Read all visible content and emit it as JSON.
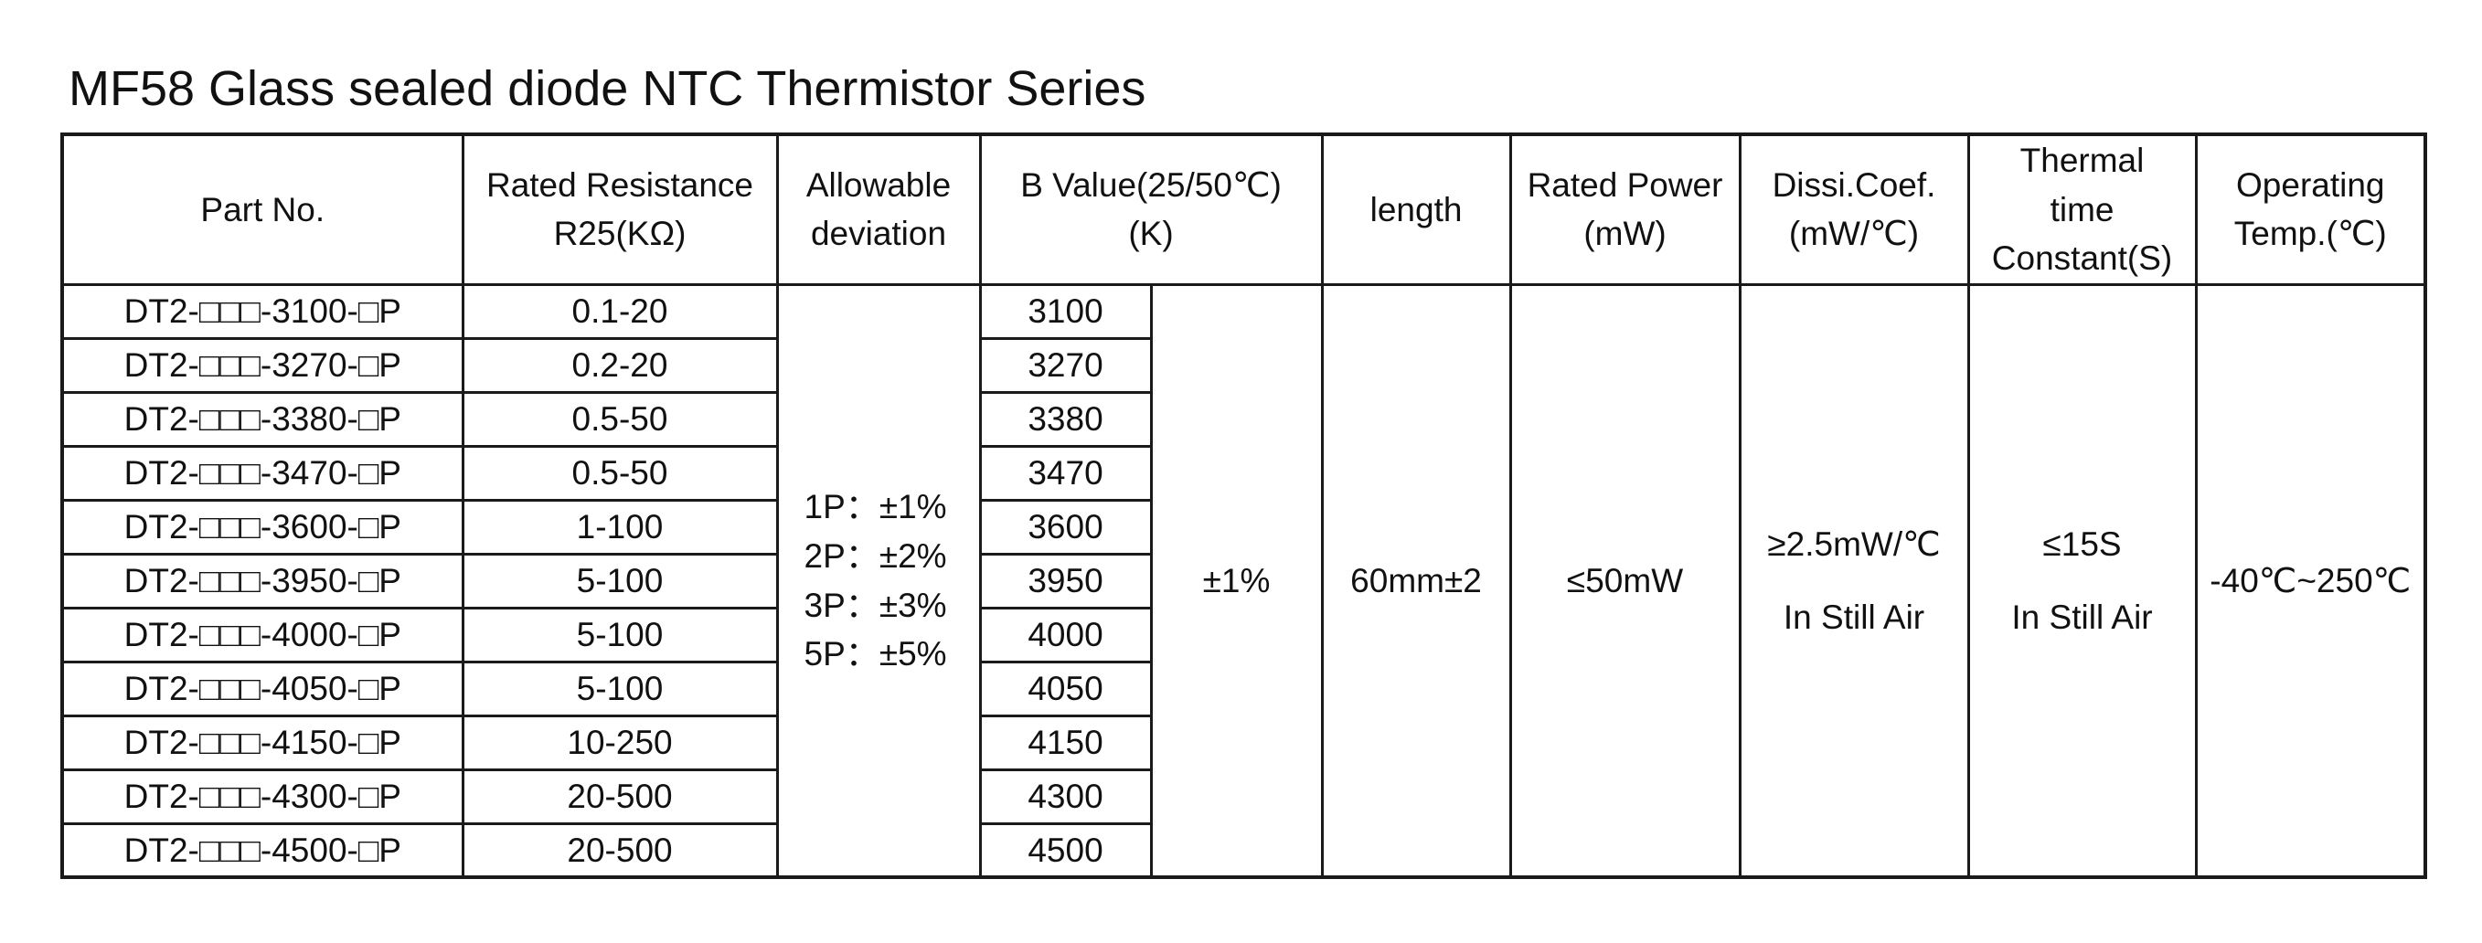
{
  "title": "MF58 Glass sealed diode NTC Thermistor Series",
  "table": {
    "headers": [
      [
        "Part No."
      ],
      [
        "Rated Resistance",
        "R25(KΩ)"
      ],
      [
        "Allowable",
        "deviation"
      ],
      [
        "B Value(25/50℃)",
        "(K)"
      ],
      [
        "length"
      ],
      [
        "Rated Power",
        "(mW)"
      ],
      [
        "Dissi.Coef.",
        "(mW/℃)"
      ],
      [
        "Thermal",
        "time",
        "Constant(S)"
      ],
      [
        "Operating",
        "Temp.(℃)"
      ]
    ],
    "rows": [
      [
        "DT2-□□□-3100-□P",
        "0.1-20",
        "3100"
      ],
      [
        "DT2-□□□-3270-□P",
        "0.2-20",
        "3270"
      ],
      [
        "DT2-□□□-3380-□P",
        "0.5-50",
        "3380"
      ],
      [
        "DT2-□□□-3470-□P",
        "0.5-50",
        "3470"
      ],
      [
        "DT2-□□□-3600-□P",
        "1-100",
        "3600"
      ],
      [
        "DT2-□□□-3950-□P",
        "5-100",
        "3950"
      ],
      [
        "DT2-□□□-4000-□P",
        "5-100",
        "4000"
      ],
      [
        "DT2-□□□-4050-□P",
        "5-100",
        "4050"
      ],
      [
        "DT2-□□□-4150-□P",
        "10-250",
        "4150"
      ],
      [
        "DT2-□□□-4300-□P",
        "20-500",
        "4300"
      ],
      [
        "DT2-□□□-4500-□P",
        "20-500",
        "4500"
      ]
    ],
    "shared": {
      "deviation": [
        "1P：±1%",
        "2P：±2%",
        "3P：±3%",
        "5P：±5%"
      ],
      "b_tolerance": "±1%",
      "length": "60mm±2",
      "rated_power": "≤50mW",
      "dissipation": [
        "≥2.5mW/℃",
        "In Still Air"
      ],
      "thermal_time": [
        "≤15S",
        "In Still Air"
      ],
      "temperature": "-40℃~250℃"
    }
  }
}
